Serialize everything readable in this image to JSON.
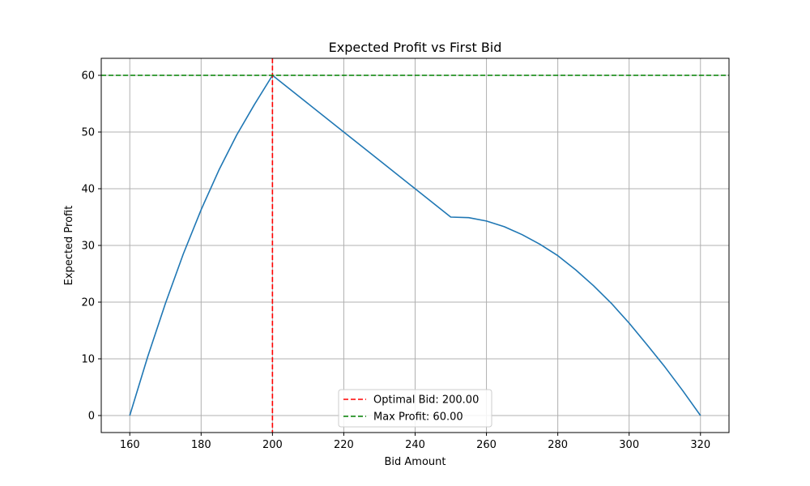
{
  "chart_data": {
    "type": "line",
    "title": "Expected Profit vs First Bid",
    "xlabel": "Bid Amount",
    "ylabel": "Expected Profit",
    "xlim": [
      152,
      328
    ],
    "ylim": [
      -3,
      63
    ],
    "xticks": [
      160,
      180,
      200,
      220,
      240,
      260,
      280,
      300,
      320
    ],
    "yticks": [
      0,
      10,
      20,
      30,
      40,
      50,
      60
    ],
    "grid": true,
    "legend_position": "bottom-center",
    "series": [
      {
        "name": "",
        "color": "#1f77b4",
        "x": [
          160,
          165,
          170,
          175,
          180,
          185,
          190,
          195,
          200,
          210,
          220,
          230,
          240,
          250,
          255,
          260,
          265,
          270,
          275,
          280,
          285,
          290,
          295,
          300,
          305,
          310,
          315,
          320
        ],
        "y": [
          0,
          10.3,
          19.8,
          28.5,
          36.3,
          43.3,
          49.5,
          54.9,
          60,
          55,
          50,
          45,
          40,
          35,
          34.9,
          34.3,
          33.3,
          31.9,
          30.2,
          28.2,
          25.7,
          22.9,
          19.8,
          16.3,
          12.5,
          8.6,
          4.4,
          0
        ]
      }
    ],
    "reference_lines": [
      {
        "orientation": "vertical",
        "value": 200,
        "color": "#ff0000",
        "style": "dashed",
        "label": "Optimal Bid: 200.00"
      },
      {
        "orientation": "horizontal",
        "value": 60,
        "color": "#008000",
        "style": "dashed",
        "label": "Max Profit: 60.00"
      }
    ]
  }
}
